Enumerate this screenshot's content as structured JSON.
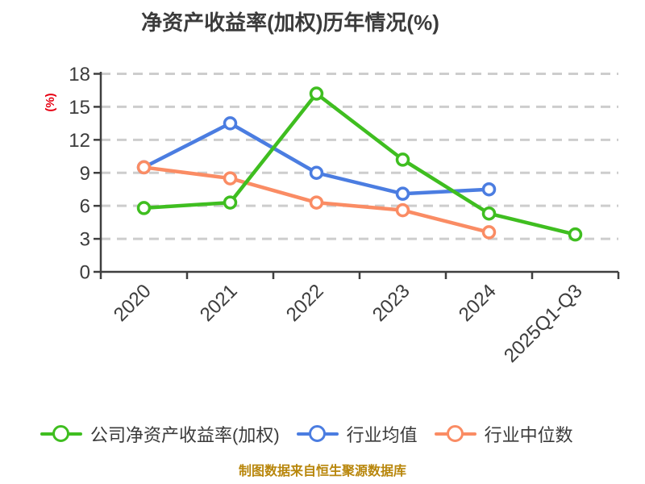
{
  "title": "净资产收益率(加权)历年情况(%)",
  "y_axis_unit": "(%)",
  "footer": "制图数据来自恒生聚源数据库",
  "colors": {
    "grid": "#cdcdcd",
    "axis": "#3f3f3f",
    "tick_label": "#3c3c3c",
    "title": "#3b3b3b",
    "percent_label": "#e60012",
    "footer": "#b8860b",
    "marker_fill": "#ffffff"
  },
  "chart_data": {
    "type": "line",
    "title": "净资产收益率(加权)历年情况(%)",
    "ylabel": "(%)",
    "categories": [
      "2020",
      "2021",
      "2022",
      "2023",
      "2024",
      "2025Q1-Q3"
    ],
    "series": [
      {
        "key": "company",
        "name": "公司净资产收益率(加权)",
        "color": "#3fbe20",
        "values": [
          5.8,
          6.3,
          16.2,
          10.2,
          5.3,
          3.4
        ]
      },
      {
        "key": "industry-avg",
        "name": "行业均值",
        "color": "#4b7de1",
        "values": [
          9.5,
          13.5,
          9.0,
          7.1,
          7.5,
          null
        ]
      },
      {
        "key": "industry-median",
        "name": "行业中位数",
        "color": "#fa8c64",
        "values": [
          9.5,
          8.5,
          6.3,
          5.6,
          3.6,
          null
        ]
      }
    ],
    "ylim": [
      0,
      18
    ],
    "y_ticks": [
      0,
      3,
      6,
      9,
      12,
      15,
      18
    ],
    "grid": "horizontal-dashed",
    "legend_position": "bottom",
    "x_tick_label_rotation": 45
  }
}
